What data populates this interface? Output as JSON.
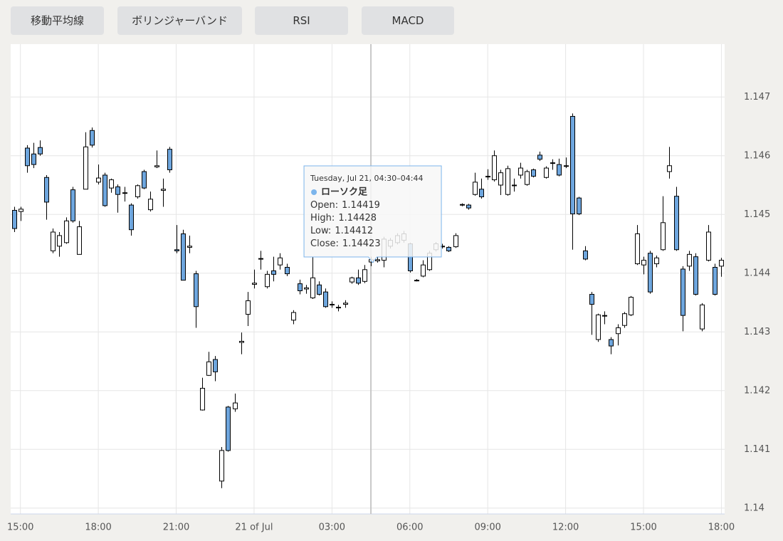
{
  "buttons": [
    "移動平均線",
    "ボリンジャーバンド",
    "RSI",
    "MACD"
  ],
  "chart_data": {
    "type": "candlestick",
    "categories": [
      null,
      "15:00",
      null,
      null,
      null,
      null,
      null,
      null,
      null,
      null,
      null,
      null,
      null,
      "18:00",
      null,
      null,
      null,
      null,
      null,
      null,
      null,
      null,
      null,
      null,
      null,
      "21:00",
      null,
      null,
      null,
      null,
      null,
      null,
      null,
      null,
      null,
      null,
      null,
      "21 of Jul",
      null,
      null,
      null,
      null,
      null,
      null,
      null,
      null,
      null,
      null,
      null,
      "03:00",
      null,
      null,
      null,
      null,
      null,
      null,
      null,
      null,
      null,
      null,
      null,
      "06:00",
      null,
      null,
      null,
      null,
      null,
      null,
      null,
      null,
      null,
      null,
      null,
      "09:00",
      null,
      null,
      null,
      null,
      null,
      null,
      null,
      null,
      null,
      null,
      null,
      "12:00",
      null,
      null,
      null,
      null,
      null,
      null,
      null,
      null,
      null,
      null,
      null,
      "15:00",
      null,
      null,
      null,
      null,
      null,
      null,
      null,
      null,
      null,
      null,
      null,
      "18:00"
    ],
    "open": [
      1.14507,
      1.14505,
      1.14613,
      1.14603,
      1.14614,
      1.14563,
      1.14438,
      1.14446,
      1.14452,
      1.14542,
      1.14432,
      1.14543,
      1.14643,
      1.14555,
      1.14567,
      1.14545,
      1.14547,
      1.14536,
      1.14516,
      1.1453,
      1.14573,
      1.14508,
      1.14581,
      1.14541,
      1.14611,
      1.1444,
      1.14467,
      1.14444,
      1.14399,
      1.14167,
      1.14226,
      1.14253,
      1.14046,
      1.14172,
      1.14169,
      1.14282,
      1.1433,
      1.14381,
      1.14424,
      1.14377,
      1.14404,
      1.14414,
      1.1441,
      1.1432,
      1.14382,
      1.14373,
      1.14358,
      1.1438,
      1.14368,
      1.14347,
      1.14341,
      1.14347,
      1.14385,
      1.14392,
      1.14386,
      1.14419,
      1.14421,
      1.14422,
      1.14446,
      1.14452,
      1.14456,
      1.1445,
      1.14388,
      1.14395,
      1.14406,
      1.1444,
      1.14446,
      1.14444,
      1.14445,
      1.14517,
      1.14516,
      1.14534,
      1.14543,
      1.14564,
      1.14559,
      1.1455,
      1.14534,
      1.14549,
      1.14567,
      1.14551,
      1.14576,
      1.14601,
      1.14563,
      1.14588,
      1.14585,
      1.14582,
      1.14667,
      1.14528,
      1.14438,
      1.14364,
      1.14287,
      1.14327,
      1.14287,
      1.14297,
      1.14311,
      1.14329,
      1.14416,
      1.14414,
      1.14434,
      1.14416,
      1.1444,
      1.14573,
      1.14531,
      1.14407,
      1.14412,
      1.14428,
      1.14305,
      1.14422,
      1.1441,
      1.14412
    ],
    "high": [
      1.14513,
      1.14513,
      1.14618,
      1.14622,
      1.14626,
      1.14567,
      1.14476,
      1.1447,
      1.14495,
      1.14547,
      1.14489,
      1.1464,
      1.14648,
      1.14585,
      1.14571,
      1.14561,
      1.14551,
      1.14547,
      1.14519,
      1.14551,
      1.14576,
      1.14539,
      1.14609,
      1.14561,
      1.14615,
      1.14482,
      1.14474,
      1.14464,
      1.14404,
      1.14222,
      1.14266,
      1.14259,
      1.14104,
      1.14174,
      1.14195,
      1.14299,
      1.14368,
      1.14406,
      1.14438,
      1.14404,
      1.14428,
      1.14434,
      1.14416,
      1.14337,
      1.14389,
      1.1438,
      1.14428,
      1.14386,
      1.14374,
      1.14352,
      1.14346,
      1.14354,
      1.14394,
      1.14406,
      1.14414,
      1.14428,
      1.14428,
      1.14462,
      1.1446,
      1.14468,
      1.14472,
      1.14452,
      1.1439,
      1.14422,
      1.14438,
      1.14453,
      1.1445,
      1.14446,
      1.14468,
      1.14519,
      1.14518,
      1.14571,
      1.14561,
      1.14577,
      1.14609,
      1.14576,
      1.14583,
      1.14561,
      1.14588,
      1.14576,
      1.14578,
      1.14607,
      1.14582,
      1.14594,
      1.14595,
      1.14597,
      1.14672,
      1.1453,
      1.14446,
      1.14368,
      1.14331,
      1.14335,
      1.14291,
      1.14313,
      1.14334,
      1.14361,
      1.14482,
      1.14428,
      1.14438,
      1.1443,
      1.14531,
      1.14615,
      1.14547,
      1.14412,
      1.14438,
      1.14434,
      1.14349,
      1.14482,
      1.14416,
      1.14426
    ],
    "low": [
      1.1447,
      1.14489,
      1.14571,
      1.14579,
      1.146,
      1.14491,
      1.14434,
      1.14428,
      1.1445,
      1.14486,
      1.14432,
      1.14543,
      1.14614,
      1.14551,
      1.14513,
      1.14537,
      1.14503,
      1.14522,
      1.14464,
      1.14527,
      1.14543,
      1.14505,
      1.14579,
      1.14513,
      1.14571,
      1.14434,
      1.14388,
      1.14434,
      1.14307,
      1.14166,
      1.14225,
      1.14216,
      1.14034,
      1.14096,
      1.14164,
      1.14262,
      1.1431,
      1.14374,
      1.14406,
      1.14374,
      1.14386,
      1.14406,
      1.14395,
      1.14313,
      1.14364,
      1.14365,
      1.14356,
      1.14362,
      1.14341,
      1.14341,
      1.14335,
      1.14341,
      1.14382,
      1.1438,
      1.14383,
      1.14412,
      1.14418,
      1.1441,
      1.14442,
      1.14449,
      1.14452,
      1.14401,
      1.14386,
      1.14393,
      1.14404,
      1.14437,
      1.14442,
      1.14436,
      1.14443,
      1.14514,
      1.14508,
      1.14532,
      1.14527,
      1.14559,
      1.14556,
      1.14533,
      1.14532,
      1.14539,
      1.14561,
      1.14549,
      1.14563,
      1.14591,
      1.14561,
      1.14576,
      1.14565,
      1.14579,
      1.1444,
      1.14499,
      1.14422,
      1.14295,
      1.14283,
      1.14313,
      1.14262,
      1.14277,
      1.14307,
      1.14327,
      1.14414,
      1.14398,
      1.14365,
      1.1441,
      1.14438,
      1.14561,
      1.14438,
      1.14301,
      1.14404,
      1.14362,
      1.14301,
      1.1442,
      1.14362,
      1.14394
    ],
    "close": [
      1.14476,
      1.14509,
      1.14583,
      1.14585,
      1.14603,
      1.14521,
      1.1447,
      1.14464,
      1.14489,
      1.14489,
      1.14479,
      1.14615,
      1.14618,
      1.14562,
      1.14515,
      1.14559,
      1.14534,
      1.14537,
      1.14474,
      1.14549,
      1.14545,
      1.14526,
      1.14583,
      1.14543,
      1.14576,
      1.14438,
      1.14388,
      1.14446,
      1.14343,
      1.14204,
      1.14249,
      1.14232,
      1.14098,
      1.14098,
      1.14179,
      1.14284,
      1.14353,
      1.14383,
      1.14425,
      1.14398,
      1.14398,
      1.14426,
      1.14399,
      1.14333,
      1.1437,
      1.14375,
      1.14392,
      1.14364,
      1.14343,
      1.14346,
      1.14342,
      1.14349,
      1.14392,
      1.14383,
      1.14406,
      1.14423,
      1.14423,
      1.14458,
      1.14456,
      1.14464,
      1.14467,
      1.14404,
      1.14387,
      1.14414,
      1.14434,
      1.1445,
      1.14445,
      1.14438,
      1.14464,
      1.14516,
      1.14511,
      1.14555,
      1.1453,
      1.14565,
      1.146,
      1.14571,
      1.14578,
      1.1455,
      1.14579,
      1.14573,
      1.14565,
      1.14594,
      1.14579,
      1.14587,
      1.14567,
      1.14583,
      1.14501,
      1.14501,
      1.14424,
      1.14347,
      1.14329,
      1.14328,
      1.14276,
      1.14307,
      1.14331,
      1.14359,
      1.14467,
      1.14422,
      1.14368,
      1.14426,
      1.14486,
      1.14583,
      1.1444,
      1.14328,
      1.14432,
      1.14364,
      1.14346,
      1.1447,
      1.14364,
      1.14422
    ],
    "up_color": "#ffffff",
    "down_color": "#6ea6de",
    "ylim": [
      1.1399,
      1.1479
    ],
    "yticks": [
      1.14,
      1.141,
      1.142,
      1.143,
      1.144,
      1.145,
      1.146,
      1.147
    ],
    "grid": true,
    "tooltip": {
      "index": 55,
      "title": "Tuesday, Jul 21, 04:30–04:44",
      "series_name": "ローソク足",
      "fields": [
        "Open:",
        "High:",
        "Low:",
        "Close:"
      ],
      "color": "#7cb5ec"
    }
  }
}
